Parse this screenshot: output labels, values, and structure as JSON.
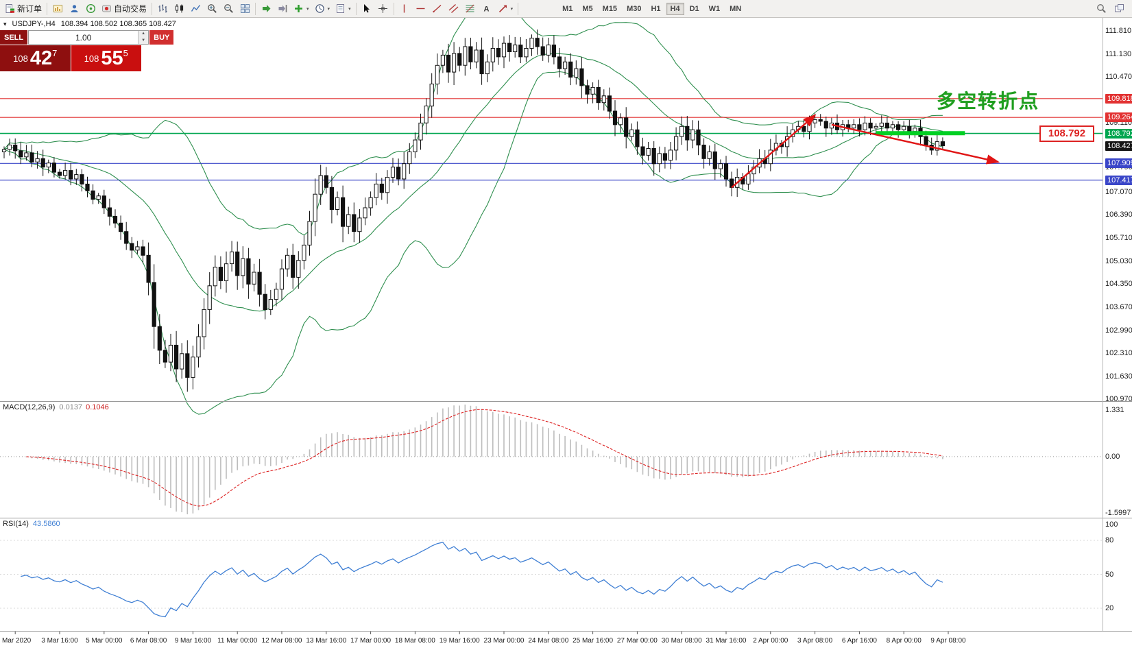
{
  "toolbar": {
    "buttons": [
      {
        "name": "new-order-button",
        "icon": "neworder",
        "label": "新订单"
      },
      {
        "sep": true
      },
      {
        "name": "new-chart-button",
        "icon": "newchart"
      },
      {
        "name": "profiles-button",
        "icon": "profiles"
      },
      {
        "name": "market-watch-button",
        "icon": "marketwatch"
      },
      {
        "name": "auto-trading-button",
        "icon": "autotrading",
        "label": "自动交易"
      },
      {
        "sep": true
      },
      {
        "name": "bar-chart-button",
        "icon": "bars"
      },
      {
        "name": "candlestick-chart-button",
        "icon": "candles"
      },
      {
        "name": "line-chart-button",
        "icon": "linechart"
      },
      {
        "name": "zoom-in-button",
        "icon": "zoomin"
      },
      {
        "name": "zoom-out-button",
        "icon": "zoomout"
      },
      {
        "name": "tile-windows-button",
        "icon": "tile"
      },
      {
        "sep": true
      },
      {
        "name": "auto-scroll-button",
        "icon": "autoscroll"
      },
      {
        "name": "chart-shift-button",
        "icon": "shift"
      },
      {
        "name": "indicators-button",
        "icon": "indicators",
        "dd": true
      },
      {
        "name": "periods-button",
        "icon": "periods",
        "dd": true
      },
      {
        "name": "templates-button",
        "icon": "templates",
        "dd": true
      },
      {
        "sep": true
      },
      {
        "name": "cursor-button",
        "icon": "cursor"
      },
      {
        "name": "crosshair-button",
        "icon": "crosshair"
      },
      {
        "sep": true
      },
      {
        "name": "vertical-line-button",
        "icon": "vline"
      },
      {
        "name": "horizontal-line-button",
        "icon": "hline"
      },
      {
        "name": "trendline-button",
        "icon": "trendline"
      },
      {
        "name": "equidistant-channel-button",
        "icon": "channel"
      },
      {
        "name": "fibonacci-button",
        "icon": "fibo"
      },
      {
        "name": "text-button",
        "icon": "text"
      },
      {
        "name": "arrows-button",
        "icon": "arrows",
        "dd": true
      },
      {
        "sep": true
      }
    ],
    "timeframes": {
      "items": [
        "M1",
        "M5",
        "M15",
        "M30",
        "H1",
        "H4",
        "D1",
        "W1",
        "MN"
      ],
      "active": "H4"
    },
    "right_icons": [
      {
        "name": "search-button",
        "icon": "search"
      },
      {
        "name": "new-window-button",
        "icon": "windows"
      }
    ]
  },
  "chart_header": {
    "symbol_period": "USDJPY-,H4",
    "ohlc": "108.394 108.502 108.365 108.427"
  },
  "trade_panel": {
    "sell_label": "SELL",
    "buy_label": "BUY",
    "volume": "1.00",
    "sell_small": "108",
    "sell_big": "42",
    "sell_sup": "7",
    "buy_small": "108",
    "buy_big": "55",
    "buy_sup": "5"
  },
  "annotations": {
    "turning_point_text": "多空转折点",
    "price_label": "108.792"
  },
  "panels": {
    "macd": {
      "name": "MACD(12,26,9)",
      "main_value": "0.0137",
      "signal_value": "0.1046",
      "axis_top": "1.331",
      "axis_zero": "0.00",
      "axis_bottom": "-1.5997"
    },
    "rsi": {
      "name": "RSI(14)",
      "value": "43.5860",
      "axis": [
        "100",
        "80",
        "50",
        "20"
      ]
    }
  },
  "price_axis": {
    "grid_labels": [
      {
        "text": "111.810",
        "price": 111.81
      },
      {
        "text": "111.130",
        "price": 111.13
      },
      {
        "text": "110.470",
        "price": 110.47
      },
      {
        "text": "109.110",
        "price": 109.11
      },
      {
        "text": "107.790",
        "price": 107.79
      },
      {
        "text": "107.070",
        "price": 107.07
      },
      {
        "text": "106.390",
        "price": 106.39
      },
      {
        "text": "105.710",
        "price": 105.71
      },
      {
        "text": "105.030",
        "price": 105.03
      },
      {
        "text": "104.350",
        "price": 104.35
      },
      {
        "text": "103.670",
        "price": 103.67
      },
      {
        "text": "102.990",
        "price": 102.99
      },
      {
        "text": "102.310",
        "price": 102.31
      },
      {
        "text": "101.630",
        "price": 101.63
      },
      {
        "text": "100.970",
        "price": 100.97
      }
    ],
    "special_labels": [
      {
        "text": "109.818",
        "price": 109.818,
        "color": "#e23232"
      },
      {
        "text": "109.264",
        "price": 109.264,
        "color": "#e23232"
      },
      {
        "text": "108.792",
        "price": 108.792,
        "color": "#00a650"
      },
      {
        "text": "108.427",
        "price": 108.427,
        "color": "#151515"
      },
      {
        "text": "107.909",
        "price": 107.909,
        "color": "#3a46c8"
      },
      {
        "text": "107.417",
        "price": 107.417,
        "color": "#3a46c8"
      }
    ]
  },
  "time_axis": {
    "labels": [
      "Mar 2020",
      "3 Mar 16:00",
      "5 Mar 00:00",
      "6 Mar 08:00",
      "9 Mar 16:00",
      "11 Mar 00:00",
      "12 Mar 08:00",
      "13 Mar 16:00",
      "17 Mar 00:00",
      "18 Mar 08:00",
      "19 Mar 16:00",
      "23 Mar 00:00",
      "24 Mar 08:00",
      "25 Mar 16:00",
      "27 Mar 00:00",
      "30 Mar 08:00",
      "31 Mar 16:00",
      "2 Apr 00:00",
      "3 Apr 08:00",
      "6 Apr 16:00",
      "8 Apr 00:00",
      "9 Apr 08:00"
    ]
  },
  "chart_data": {
    "type": "candlestick",
    "symbol": "USDJPY",
    "period": "H4",
    "ohlc_header": {
      "open": 108.394,
      "high": 108.502,
      "low": 108.365,
      "close": 108.427
    },
    "price_range_visible": [
      100.9,
      112.2
    ],
    "first_open": 108.25,
    "closes": [
      108.32,
      108.45,
      108.28,
      108.1,
      108.22,
      107.95,
      108.05,
      107.8,
      107.92,
      107.65,
      107.55,
      107.7,
      107.45,
      107.58,
      107.3,
      107.1,
      106.85,
      106.95,
      106.6,
      106.35,
      106.15,
      105.9,
      105.55,
      105.35,
      105.45,
      105.2,
      104.4,
      103.1,
      102.4,
      102.05,
      102.55,
      101.85,
      102.3,
      101.6,
      102.2,
      102.8,
      103.6,
      104.3,
      104.85,
      104.45,
      104.95,
      105.3,
      104.6,
      105.1,
      104.35,
      104.7,
      104.05,
      103.6,
      103.9,
      104.2,
      104.8,
      105.2,
      104.55,
      105.05,
      105.5,
      106.2,
      107.0,
      107.55,
      107.2,
      106.55,
      106.9,
      106.05,
      106.4,
      105.9,
      106.3,
      106.6,
      106.9,
      107.3,
      107.05,
      107.5,
      107.8,
      107.45,
      107.9,
      108.25,
      108.6,
      109.1,
      109.6,
      110.25,
      110.8,
      111.1,
      110.6,
      111.15,
      110.8,
      111.35,
      110.9,
      111.25,
      110.55,
      110.9,
      111.3,
      111.05,
      111.45,
      111.2,
      111.4,
      111.05,
      111.3,
      111.6,
      111.35,
      111.1,
      111.4,
      111.05,
      110.7,
      110.9,
      110.45,
      110.7,
      110.2,
      109.95,
      110.15,
      109.7,
      109.9,
      109.45,
      109.05,
      109.25,
      108.7,
      108.9,
      108.4,
      108.15,
      108.35,
      107.9,
      108.2,
      108.0,
      108.3,
      108.7,
      109.0,
      108.6,
      108.9,
      108.45,
      108.05,
      108.25,
      107.75,
      107.9,
      107.45,
      107.2,
      107.5,
      107.3,
      107.6,
      107.8,
      108.05,
      107.9,
      108.3,
      108.5,
      108.4,
      108.7,
      108.9,
      109.0,
      108.85,
      109.1,
      109.2,
      109.15,
      108.95,
      109.1,
      108.9,
      109.05,
      108.95,
      109.05,
      108.9,
      109.1,
      108.95,
      109.0,
      109.1,
      108.95,
      109.05,
      108.9,
      109.0,
      108.85,
      108.95,
      108.7,
      108.45,
      108.3,
      108.55,
      108.43
    ],
    "wick_overrides": {
      "low": {
        "33": 101.18
      },
      "high": {
        "95": 111.71,
        "146": 109.38
      }
    },
    "indicators": {
      "bollinger": {
        "period": 20,
        "deviation": 2,
        "color": "#2f8f4f"
      },
      "macd": {
        "fast": 12,
        "slow": 26,
        "signal": 9,
        "main_value": 0.0137,
        "signal_value": 0.1046,
        "scale": [
          1.331,
          0,
          -1.5997
        ]
      },
      "rsi": {
        "period": 14,
        "value": 43.586,
        "levels": [
          80,
          50,
          20
        ]
      }
    },
    "horizontal_lines": [
      {
        "price": 109.818,
        "color": "#e23232"
      },
      {
        "price": 109.264,
        "color": "#e23232"
      },
      {
        "price": 108.792,
        "color": "#00a650"
      },
      {
        "price": 107.909,
        "color": "#3a46c8"
      },
      {
        "price": 107.417,
        "color": "#3a46c8"
      }
    ],
    "trend_arrows": [
      {
        "direction": "up",
        "from_bar": 131,
        "from_price": 107.2,
        "to_bar": 146,
        "to_price": 109.33,
        "color": "#e01515"
      },
      {
        "direction": "down",
        "from_bar": 149,
        "from_price": 109.05,
        "to_bar": 179,
        "to_price": 107.95,
        "color": "#e01515"
      }
    ],
    "highlight_segment": {
      "price": 108.8,
      "from_bar": 157,
      "to_bar": 173,
      "color": "#00d024"
    }
  }
}
